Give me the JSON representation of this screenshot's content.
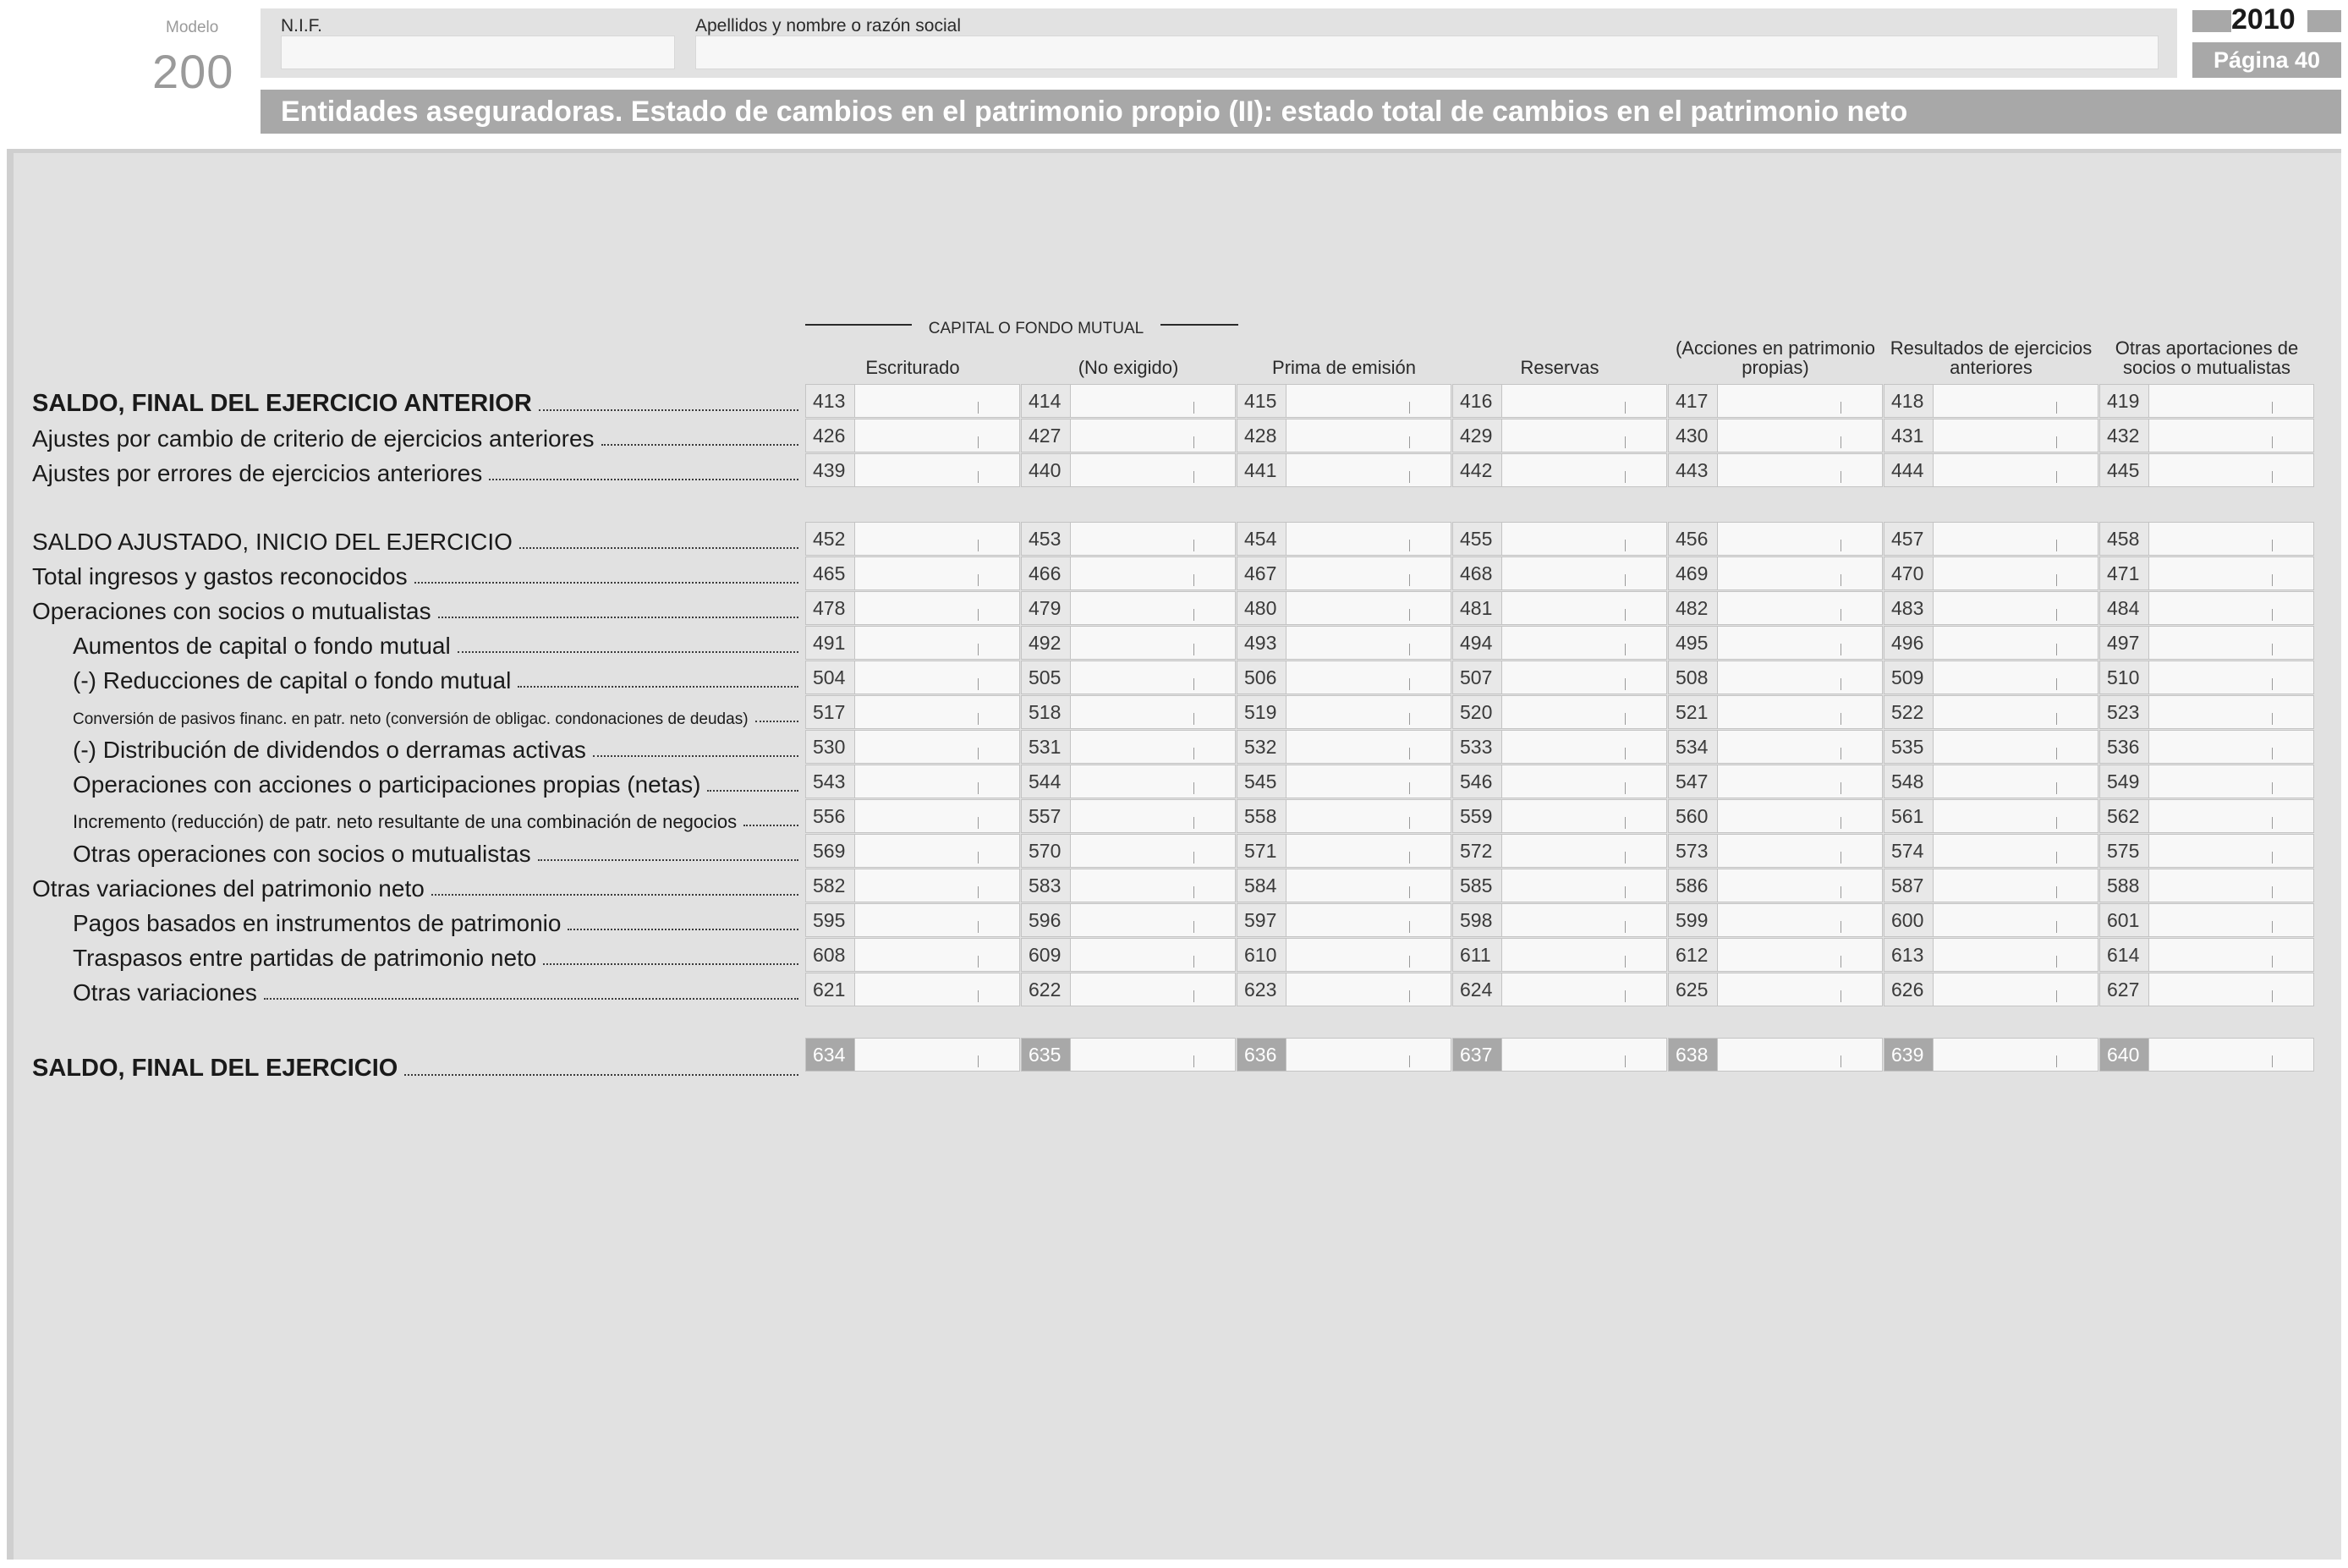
{
  "header": {
    "modelo_label": "Modelo",
    "modelo_number": "200",
    "nif_label": "N.I.F.",
    "name_label": "Apellidos y nombre o razón social",
    "year": "2010",
    "page": "Página 40",
    "title": "Entidades aseguradoras. Estado de cambios en el patrimonio propio (II): estado total de cambios en el patrimonio neto"
  },
  "table": {
    "group_label": "CAPITAL O FONDO MUTUAL",
    "columns": [
      "Escriturado",
      "(No exigido)",
      "Prima de emisión",
      "Reservas",
      "(Acciones en patrimonio propias)",
      "Resultados de ejercicios anteriores",
      "Otras aportaciones de socios o mutualistas"
    ],
    "rows": [
      {
        "label": "SALDO, FINAL DEL EJERCICIO ANTERIOR",
        "codes": [
          "413",
          "414",
          "415",
          "416",
          "417",
          "418",
          "419"
        ]
      },
      {
        "label": "Ajustes por cambio de criterio de ejercicios anteriores",
        "codes": [
          "426",
          "427",
          "428",
          "429",
          "430",
          "431",
          "432"
        ]
      },
      {
        "label": "Ajustes por errores de ejercicios anteriores",
        "codes": [
          "439",
          "440",
          "441",
          "442",
          "443",
          "444",
          "445"
        ]
      },
      {
        "label": "SALDO AJUSTADO, INICIO DEL EJERCICIO",
        "codes": [
          "452",
          "453",
          "454",
          "455",
          "456",
          "457",
          "458"
        ]
      },
      {
        "label": "Total ingresos y gastos reconocidos",
        "codes": [
          "465",
          "466",
          "467",
          "468",
          "469",
          "470",
          "471"
        ]
      },
      {
        "label": "Operaciones con socios o mutualistas",
        "codes": [
          "478",
          "479",
          "480",
          "481",
          "482",
          "483",
          "484"
        ]
      },
      {
        "label": "Aumentos de capital o fondo mutual",
        "codes": [
          "491",
          "492",
          "493",
          "494",
          "495",
          "496",
          "497"
        ]
      },
      {
        "label": "(-) Reducciones de capital o fondo mutual",
        "codes": [
          "504",
          "505",
          "506",
          "507",
          "508",
          "509",
          "510"
        ]
      },
      {
        "label": "Conversión de pasivos financ. en patr. neto (conversión de obligac. condonaciones de deudas)",
        "codes": [
          "517",
          "518",
          "519",
          "520",
          "521",
          "522",
          "523"
        ]
      },
      {
        "label": "(-) Distribución de dividendos o derramas activas",
        "codes": [
          "530",
          "531",
          "532",
          "533",
          "534",
          "535",
          "536"
        ]
      },
      {
        "label": "Operaciones con acciones o participaciones propias (netas)",
        "codes": [
          "543",
          "544",
          "545",
          "546",
          "547",
          "548",
          "549"
        ]
      },
      {
        "label": "Incremento (reducción) de patr. neto resultante de una combinación de negocios",
        "codes": [
          "556",
          "557",
          "558",
          "559",
          "560",
          "561",
          "562"
        ]
      },
      {
        "label": "Otras operaciones con socios o mutualistas",
        "codes": [
          "569",
          "570",
          "571",
          "572",
          "573",
          "574",
          "575"
        ]
      },
      {
        "label": "Otras variaciones del patrimonio neto",
        "codes": [
          "582",
          "583",
          "584",
          "585",
          "586",
          "587",
          "588"
        ]
      },
      {
        "label": "Pagos basados en instrumentos de patrimonio",
        "codes": [
          "595",
          "596",
          "597",
          "598",
          "599",
          "600",
          "601"
        ]
      },
      {
        "label": "Traspasos entre partidas de patrimonio neto",
        "codes": [
          "608",
          "609",
          "610",
          "611",
          "612",
          "613",
          "614"
        ]
      },
      {
        "label": "Otras variaciones",
        "codes": [
          "621",
          "622",
          "623",
          "624",
          "625",
          "626",
          "627"
        ]
      },
      {
        "label": "SALDO, FINAL DEL EJERCICIO",
        "codes": [
          "634",
          "635",
          "636",
          "637",
          "638",
          "639",
          "640"
        ]
      }
    ]
  }
}
